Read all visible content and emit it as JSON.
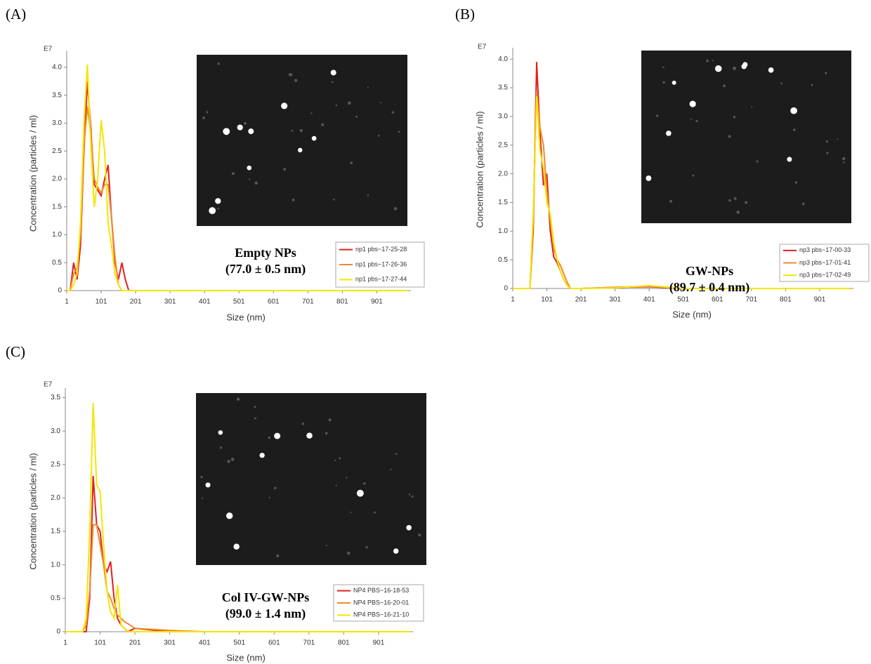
{
  "chart_data": [
    {
      "type": "line",
      "panel_label": "(A)",
      "y_multiplier": "E7",
      "xlabel": "Size (nm)",
      "ylabel": "Concentration (particles / ml)",
      "annotations": [
        "Empty NPs",
        "(77.0 ± 0.5 nm)"
      ],
      "x": [
        1,
        11,
        21,
        31,
        41,
        51,
        61,
        71,
        81,
        91,
        101,
        111,
        121,
        131,
        141,
        151,
        161,
        171,
        181,
        201,
        301,
        401,
        501,
        601,
        701,
        801,
        901,
        991
      ],
      "xlim": [
        1,
        1000
      ],
      "xticks": [
        1,
        101,
        201,
        301,
        401,
        501,
        601,
        701,
        801,
        901
      ],
      "ylim": [
        0,
        4.2
      ],
      "yticks": [
        0,
        0.5,
        {
          "value": 1,
          "label": "1.0"
        },
        1.5,
        {
          "value": 2,
          "label": "2.0"
        },
        2.5,
        {
          "value": 3,
          "label": "3.0"
        },
        3.5,
        {
          "value": 4,
          "label": "4.0"
        }
      ],
      "series": [
        {
          "name": "np1 pbs~17-25-28",
          "color": "#e02020",
          "values": [
            0,
            0,
            0.5,
            0.2,
            0.8,
            2.5,
            3.75,
            2.9,
            1.9,
            1.8,
            1.7,
            2.0,
            2.25,
            1.3,
            0.5,
            0.2,
            0.5,
            0.2,
            0,
            0,
            0,
            0,
            0,
            0,
            0,
            0,
            0,
            0
          ]
        },
        {
          "name": "np1 pbs~17-26-36",
          "color": "#f08a30",
          "values": [
            0,
            0,
            0.3,
            0.4,
            1.0,
            2.6,
            3.3,
            2.8,
            2.0,
            1.85,
            1.75,
            1.9,
            1.9,
            1.3,
            0.6,
            0.1,
            0,
            0,
            0,
            0,
            0,
            0,
            0,
            0,
            0,
            0,
            0,
            0
          ]
        },
        {
          "name": "np1 pbs~17-27-44",
          "color": "#f5e600",
          "values": [
            0,
            0,
            0.1,
            0.3,
            1.2,
            3.0,
            4.05,
            2.6,
            1.5,
            2.0,
            3.05,
            2.5,
            1.2,
            0.8,
            0.3,
            0.1,
            0,
            0,
            0,
            0,
            0,
            0,
            0,
            0,
            0,
            0,
            0,
            0
          ]
        }
      ]
    },
    {
      "type": "line",
      "panel_label": "(B)",
      "y_multiplier": "E7",
      "xlabel": "Size (nm)",
      "ylabel": "Concentration (particles / ml)",
      "annotations": [
        "GW-NPs",
        "(89.7 ± 0.4 nm)"
      ],
      "x": [
        1,
        11,
        21,
        31,
        41,
        51,
        61,
        71,
        81,
        91,
        101,
        111,
        121,
        131,
        141,
        151,
        161,
        171,
        181,
        201,
        301,
        401,
        501,
        601,
        701,
        801,
        901,
        991
      ],
      "xlim": [
        1,
        1000
      ],
      "xticks": [
        1,
        101,
        201,
        301,
        401,
        501,
        601,
        701,
        801,
        901
      ],
      "ylim": [
        0,
        4.15
      ],
      "yticks": [
        0,
        0.5,
        {
          "value": 1,
          "label": "1.0"
        },
        1.5,
        {
          "value": 2,
          "label": "2.0"
        },
        2.5,
        {
          "value": 3,
          "label": "3.0"
        },
        3.5,
        {
          "value": 4,
          "label": "4.0"
        }
      ],
      "series": [
        {
          "name": "np3 pbs~17-00-33",
          "color": "#e02020",
          "values": [
            0,
            0,
            0,
            0,
            0,
            0,
            1.0,
            3.95,
            2.7,
            1.8,
            2.0,
            1.0,
            0.55,
            0.45,
            0.3,
            0.15,
            0.05,
            0,
            0,
            0,
            0.02,
            0.03,
            0,
            0,
            0,
            0,
            0,
            0
          ]
        },
        {
          "name": "np3 pbs~17-01-41",
          "color": "#f08a30",
          "values": [
            0,
            0,
            0,
            0,
            0,
            0,
            1.2,
            3.45,
            2.8,
            2.5,
            1.7,
            1.2,
            0.7,
            0.5,
            0.4,
            0.25,
            0.1,
            0,
            0,
            0,
            0.02,
            0.04,
            0,
            0,
            0,
            0,
            0,
            0
          ]
        },
        {
          "name": "np3 pbs~17-02-49",
          "color": "#f5e600",
          "values": [
            0,
            0,
            0,
            0,
            0,
            0,
            1.3,
            3.35,
            2.4,
            2.1,
            1.5,
            1.3,
            0.8,
            0.5,
            0.3,
            0.15,
            0.05,
            0,
            0,
            0,
            0.01,
            0.05,
            0,
            0,
            0,
            0,
            0,
            0
          ]
        }
      ]
    },
    {
      "type": "line",
      "panel_label": "(C)",
      "y_multiplier": "E7",
      "xlabel": "Size (nm)",
      "ylabel": "Concentration (particles / ml)",
      "annotations": [
        "Col IV-GW-NPs",
        "(99.0 ± 1.4 nm)"
      ],
      "x": [
        1,
        11,
        21,
        31,
        41,
        51,
        61,
        71,
        81,
        91,
        101,
        111,
        121,
        131,
        141,
        151,
        161,
        171,
        181,
        201,
        301,
        401,
        501,
        601,
        701,
        801,
        901,
        991
      ],
      "xlim": [
        1,
        1000
      ],
      "xticks": [
        1,
        101,
        201,
        301,
        401,
        501,
        601,
        701,
        801,
        901
      ],
      "ylim": [
        0,
        3.6
      ],
      "yticks": [
        0,
        0.5,
        {
          "value": 1,
          "label": "1.0"
        },
        1.5,
        {
          "value": 2,
          "label": "2.0"
        },
        2.5,
        {
          "value": 3,
          "label": "3.0"
        },
        3.5
      ],
      "series": [
        {
          "name": "NP4 PBS~16-18-53",
          "color": "#e02020",
          "values": [
            0,
            0,
            0,
            0,
            0,
            0,
            0,
            0.5,
            2.33,
            1.6,
            1.5,
            1.0,
            0.9,
            1.05,
            0.5,
            0.2,
            0.1,
            0.05,
            0,
            0.05,
            0,
            0,
            0,
            0,
            0,
            0,
            0,
            0
          ]
        },
        {
          "name": "NP4 PBS~16-20-01",
          "color": "#f08a30",
          "values": [
            0,
            0,
            0,
            0,
            0,
            0,
            0.1,
            0.6,
            1.6,
            1.6,
            1.3,
            1.0,
            0.6,
            0.5,
            0.35,
            0.25,
            0.2,
            0.15,
            0.12,
            0.05,
            0.02,
            0,
            0,
            0,
            0,
            0,
            0,
            0
          ]
        },
        {
          "name": "NP4 PBS~16-21-10",
          "color": "#f5e600",
          "values": [
            0,
            0,
            0,
            0,
            0,
            0,
            0.2,
            1.5,
            3.42,
            2.2,
            2.1,
            1.3,
            0.6,
            0.3,
            0.2,
            0.7,
            0.1,
            0.05,
            0,
            0,
            0,
            0,
            0,
            0,
            0,
            0,
            0,
            0
          ]
        }
      ]
    }
  ]
}
